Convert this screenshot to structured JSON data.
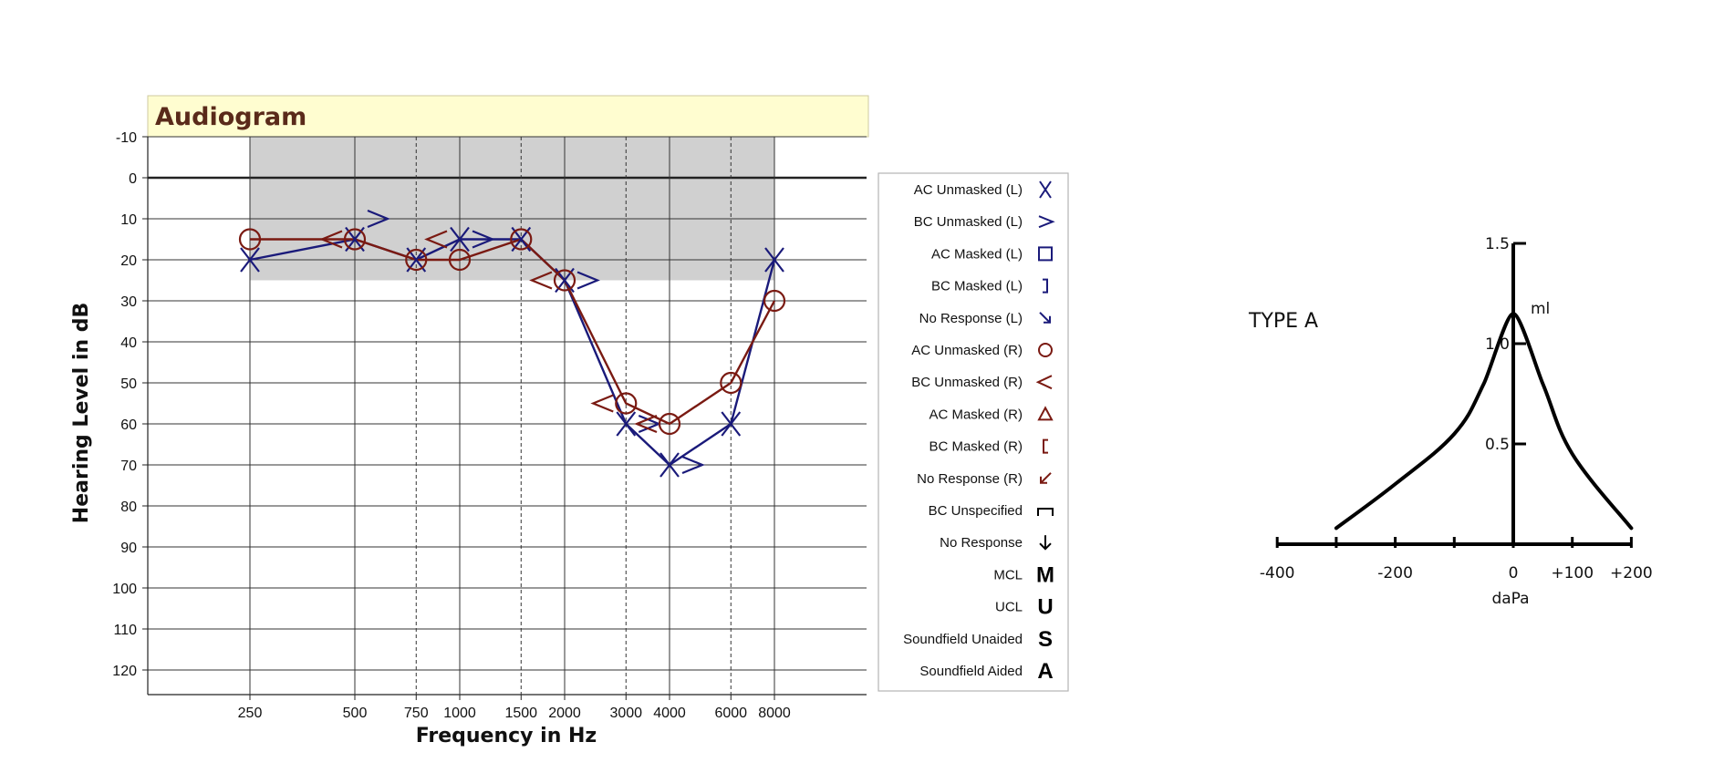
{
  "chart_data": [
    {
      "type": "line",
      "title": "Audiogram",
      "xlabel": "Frequency in Hz",
      "ylabel": "Hearing Level in dB",
      "x_tick_labels": [
        "250",
        "500",
        "750",
        "1000",
        "1500",
        "2000",
        "3000",
        "4000",
        "6000",
        "8000"
      ],
      "y_ticks": [
        -10,
        0,
        10,
        20,
        30,
        40,
        50,
        60,
        70,
        80,
        90,
        100,
        110,
        120
      ],
      "ylim": [
        -10,
        125
      ],
      "y_inverted": true,
      "x_scale": "log",
      "normal_range_db": [
        -10,
        25
      ],
      "grid": true,
      "series": [
        {
          "symbol": "AC Unmasked (L)",
          "color": "#1a1a7a",
          "marker": "X",
          "x": [
            250,
            500,
            750,
            1000,
            1500,
            2000,
            3000,
            4000,
            6000,
            8000
          ],
          "y": [
            20,
            15,
            20,
            15,
            15,
            25,
            60,
            70,
            60,
            20
          ]
        },
        {
          "symbol": "BC Unmasked (L)",
          "color": "#1a1a7a",
          "marker": ">",
          "x": [
            500,
            1000,
            2000,
            3000,
            4000
          ],
          "y": [
            10,
            15,
            25,
            60,
            70
          ]
        },
        {
          "symbol": "AC Unmasked (R)",
          "color": "#7a1a12",
          "marker": "O",
          "x": [
            250,
            500,
            750,
            1000,
            1500,
            2000,
            3000,
            4000,
            6000,
            8000
          ],
          "y": [
            15,
            15,
            20,
            20,
            15,
            25,
            55,
            60,
            50,
            30
          ]
        },
        {
          "symbol": "BC Unmasked (R)",
          "color": "#7a1a12",
          "marker": "<",
          "x": [
            500,
            1000,
            2000,
            3000,
            4000
          ],
          "y": [
            15,
            15,
            25,
            55,
            60
          ]
        }
      ]
    },
    {
      "type": "line",
      "title": "TYPE A",
      "xlabel": "daPa",
      "ylabel": "ml",
      "x_ticks": [
        -400,
        -300,
        -200,
        -100,
        0,
        100,
        200
      ],
      "x_tick_labels": [
        {
          "value": -400,
          "label": "-400"
        },
        {
          "value": -200,
          "label": "-200"
        },
        {
          "value": 0,
          "label": "0"
        },
        {
          "value": 100,
          "label": "+100"
        },
        {
          "value": 200,
          "label": "+200"
        }
      ],
      "y_ticks": [
        0.5,
        1.0,
        1.5
      ],
      "y_tick_labels": [
        "0.5",
        "1.0",
        "1.5"
      ],
      "xlim": [
        -400,
        200
      ],
      "ylim": [
        0,
        1.5
      ],
      "series": [
        {
          "x": [
            -300,
            -200,
            -100,
            -50,
            0,
            50,
            100,
            200
          ],
          "y": [
            0.08,
            0.3,
            0.55,
            0.8,
            1.15,
            0.8,
            0.45,
            0.08
          ]
        }
      ]
    }
  ],
  "legend": [
    {
      "label": "AC Unmasked (L)",
      "symbol": "X",
      "color": "#1a1a7a"
    },
    {
      "label": "BC Unmasked (L)",
      "symbol": ">",
      "color": "#1a1a7a"
    },
    {
      "label": "AC Masked (L)",
      "symbol": "square",
      "color": "#1a1a7a"
    },
    {
      "label": "BC Masked (L)",
      "symbol": "]",
      "color": "#1a1a7a"
    },
    {
      "label": "No Response (L)",
      "symbol": "arrow-down-right",
      "color": "#1a1a7a"
    },
    {
      "label": "AC Unmasked (R)",
      "symbol": "O",
      "color": "#7a1a12"
    },
    {
      "label": "BC Unmasked (R)",
      "symbol": "<",
      "color": "#7a1a12"
    },
    {
      "label": "AC Masked (R)",
      "symbol": "triangle",
      "color": "#7a1a12"
    },
    {
      "label": "BC Masked (R)",
      "symbol": "[",
      "color": "#7a1a12"
    },
    {
      "label": "No Response (R)",
      "symbol": "arrow-down-left",
      "color": "#7a1a12"
    },
    {
      "label": "BC Unspecified",
      "symbol": "bracket-bottom",
      "color": "#000000"
    },
    {
      "label": "No Response",
      "symbol": "arrow-down",
      "color": "#000000"
    },
    {
      "label": "MCL",
      "symbol": "M",
      "color": "#000000"
    },
    {
      "label": "UCL",
      "symbol": "U",
      "color": "#000000"
    },
    {
      "label": "Soundfield Unaided",
      "symbol": "S",
      "color": "#000000"
    },
    {
      "label": "Soundfield Aided",
      "symbol": "A",
      "color": "#000000"
    }
  ],
  "colors": {
    "title_bar": "#fffdd0",
    "normal_range": "#d0d0d0",
    "left_ear": "#1a1a7a",
    "right_ear": "#7a1a12"
  }
}
